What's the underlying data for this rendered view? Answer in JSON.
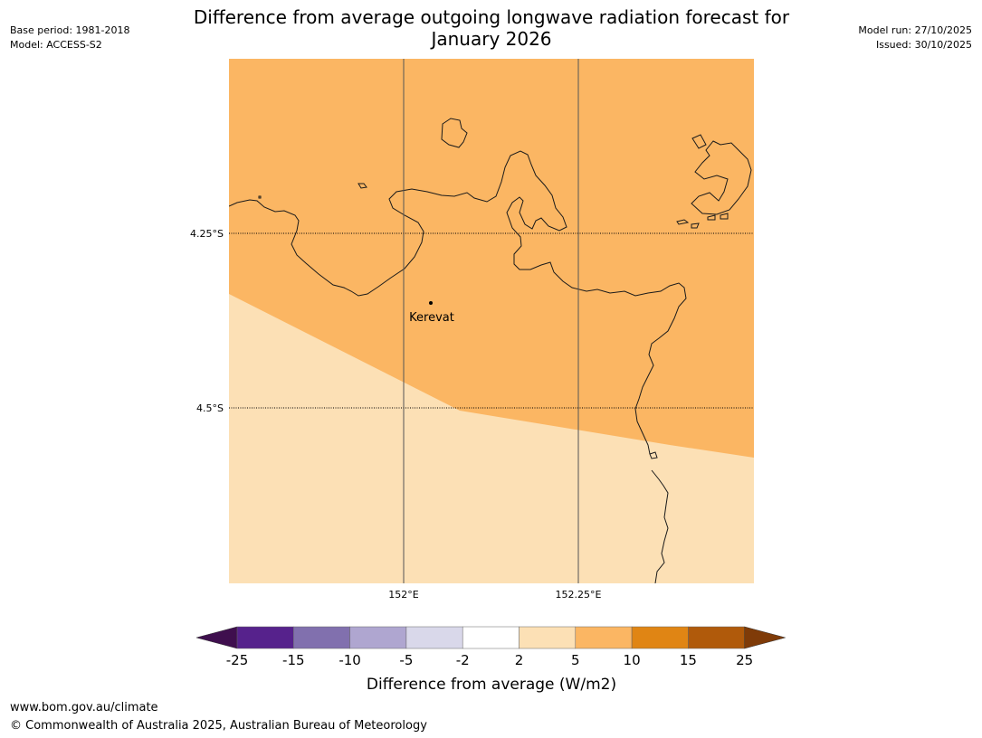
{
  "header": {
    "base_period": "Base period: 1981-2018",
    "model": "Model: ACCESS-S2",
    "title_line1": "Difference from average outgoing longwave radiation forecast for",
    "title_line2": "January 2026",
    "model_run": "Model run: 27/10/2025",
    "issued": "Issued: 30/10/2025"
  },
  "map": {
    "lat_labels": [
      "4.25°S",
      "4.5°S"
    ],
    "lon_labels": [
      "152°E",
      "152.25°E"
    ],
    "place_label": "Kerevat",
    "zone_colors": {
      "upper": "#fbb663",
      "lower": "#fce0b5"
    },
    "upper_zone_range": "5 to 10",
    "lower_zone_range": "2 to 5"
  },
  "colorbar": {
    "tick_labels": [
      "-25",
      "-15",
      "-10",
      "-5",
      "-2",
      "2",
      "5",
      "10",
      "15",
      "25"
    ],
    "colors": [
      "#3f0f4e",
      "#56228c",
      "#8170ae",
      "#afa6d0",
      "#d9d8ea",
      "#ffffff",
      "#fce0b5",
      "#fbb663",
      "#e08514",
      "#b05a0b",
      "#7f3b08"
    ],
    "label": "Difference from average (W/m2)"
  },
  "footer": {
    "url": "www.bom.gov.au/climate",
    "copyright": "© Commonwealth of Australia 2025, Australian Bureau of Meteorology"
  }
}
